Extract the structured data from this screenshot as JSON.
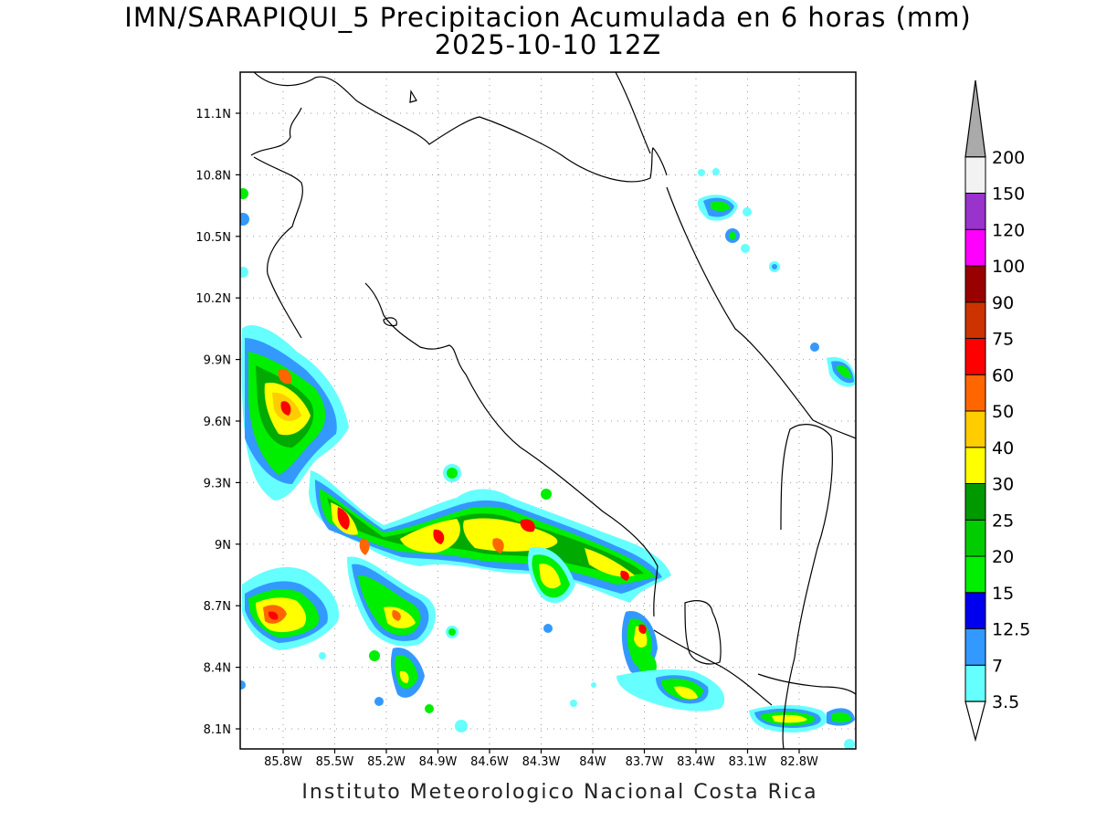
{
  "title": {
    "line1": "IMN/SARAPIQUI_5 Precipitacion Acumulada en 6 horas (mm)",
    "line2": "2025-10-10 12Z"
  },
  "footer": "Instituto Meteorologico Nacional Costa Rica",
  "map": {
    "lat_ticks": [
      "11.1N",
      "10.8N",
      "10.5N",
      "10.2N",
      "9.9N",
      "9.6N",
      "9.3N",
      "9N",
      "8.7N",
      "8.4N",
      "8.1N"
    ],
    "lon_ticks": [
      "85.8W",
      "85.5W",
      "85.2W",
      "84.9W",
      "84.6W",
      "84.3W",
      "84W",
      "83.7W",
      "83.4W",
      "83.1W",
      "82.8W"
    ]
  },
  "colorbar": {
    "levels": [
      "3.5",
      "7",
      "12.5",
      "15",
      "20",
      "25",
      "30",
      "40",
      "50",
      "60",
      "75",
      "90",
      "100",
      "120",
      "150",
      "200"
    ],
    "colors": [
      "#66ffff",
      "#3399ff",
      "#0000ee",
      "#00ee00",
      "#00cc00",
      "#009900",
      "#ffff00",
      "#ffcc00",
      "#ff6600",
      "#ff0000",
      "#cc3300",
      "#990000",
      "#ff00ff",
      "#9933cc",
      "#f2f2f2",
      "#aaaaaa"
    ]
  }
}
